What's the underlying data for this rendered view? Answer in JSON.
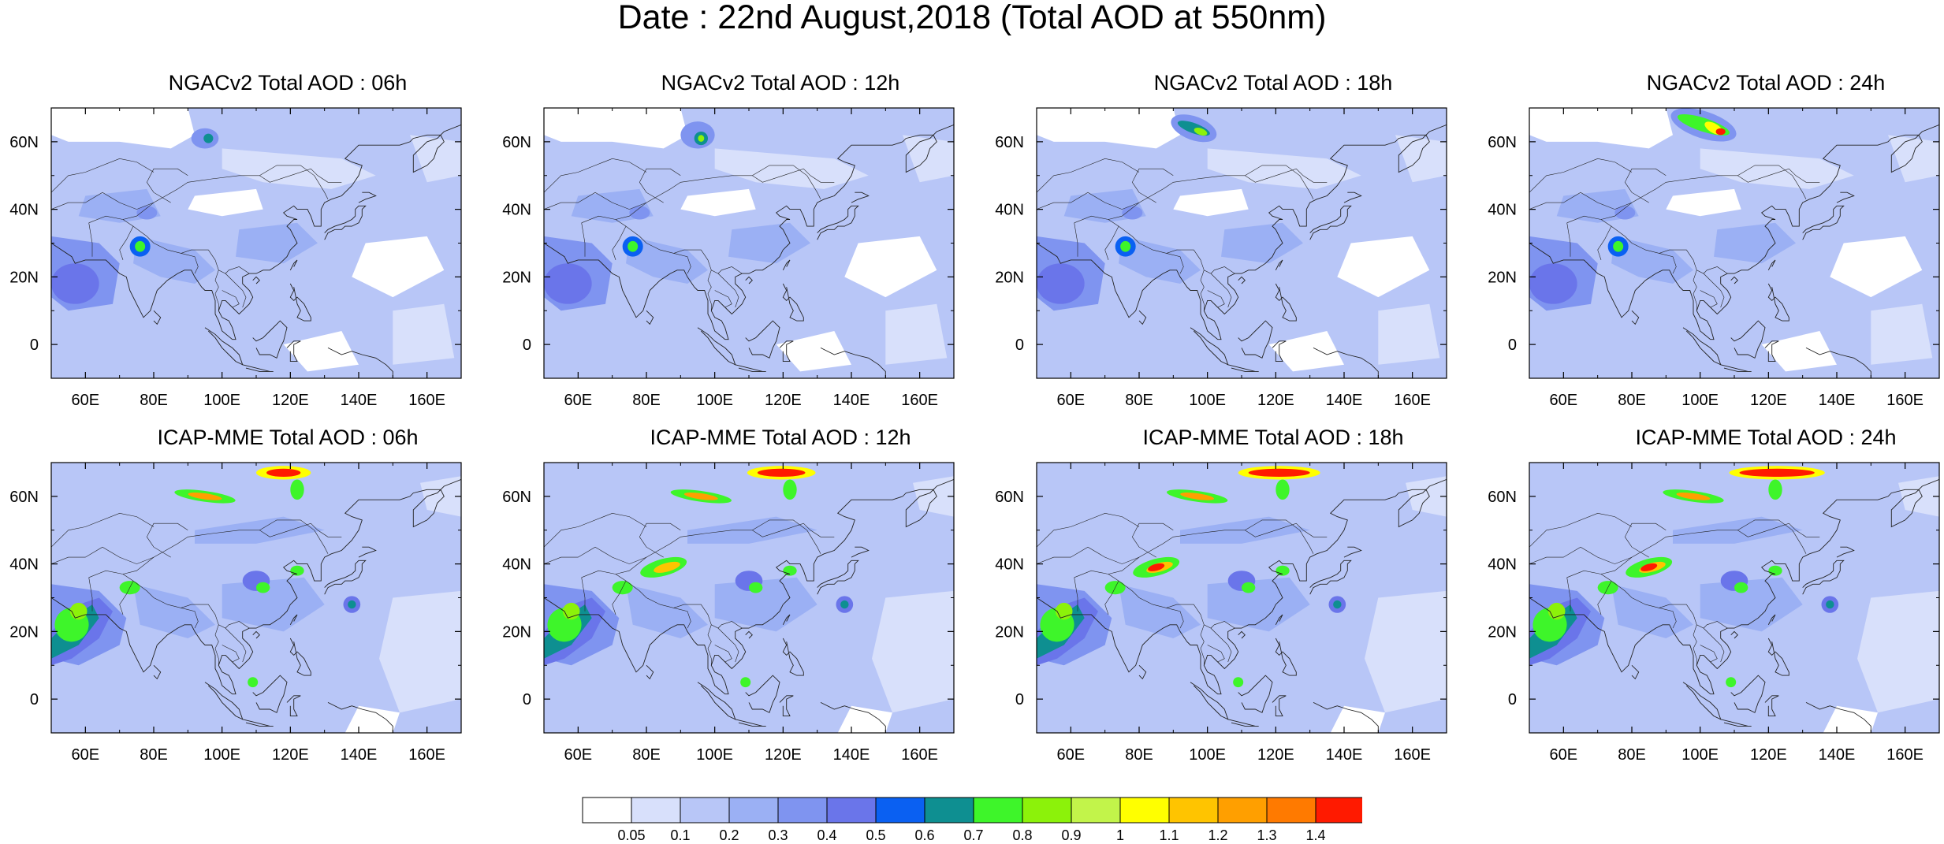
{
  "figure": {
    "title": "Date : 22nd August,2018 (Total AOD at 550nm)"
  },
  "axes": {
    "lon_ticks": [
      60,
      80,
      100,
      120,
      140,
      160
    ],
    "lon_tick_labels": [
      "60E",
      "80E",
      "100E",
      "120E",
      "140E",
      "160E"
    ],
    "lat_ticks": [
      60,
      40,
      20,
      0
    ],
    "lat_tick_labels": [
      "60N",
      "40N",
      "20N",
      "0"
    ],
    "lon_range": [
      50,
      170
    ],
    "lat_range": [
      -10,
      70
    ]
  },
  "panels": [
    {
      "title": "NGACv2 Total AOD : 06h",
      "model": "ngac",
      "hour": 6
    },
    {
      "title": "NGACv2 Total AOD : 12h",
      "model": "ngac",
      "hour": 12
    },
    {
      "title": "NGACv2 Total AOD : 18h",
      "model": "ngac",
      "hour": 18
    },
    {
      "title": "NGACv2 Total AOD : 24h",
      "model": "ngac",
      "hour": 24
    },
    {
      "title": "ICAP-MME Total AOD : 06h",
      "model": "icap",
      "hour": 6
    },
    {
      "title": "ICAP-MME Total AOD : 12h",
      "model": "icap",
      "hour": 12
    },
    {
      "title": "ICAP-MME Total AOD : 18h",
      "model": "icap",
      "hour": 18
    },
    {
      "title": "ICAP-MME Total AOD : 24h",
      "model": "icap",
      "hour": 24
    }
  ],
  "colorbar": {
    "levels": [
      "0.05",
      "0.1",
      "0.2",
      "0.3",
      "0.4",
      "0.5",
      "0.6",
      "0.7",
      "0.8",
      "0.9",
      "1",
      "1.1",
      "1.2",
      "1.3",
      "1.4"
    ],
    "colors": [
      "#ffffff",
      "#d8e0fb",
      "#b8c6f7",
      "#9bb0f4",
      "#7f94f0",
      "#6a75ea",
      "#0a60f2",
      "#0e8f91",
      "#3ef52a",
      "#8cf20a",
      "#c2f44a",
      "#ffff00",
      "#ffc400",
      "#ff9f00",
      "#ff7a00",
      "#ff1a00"
    ]
  }
}
